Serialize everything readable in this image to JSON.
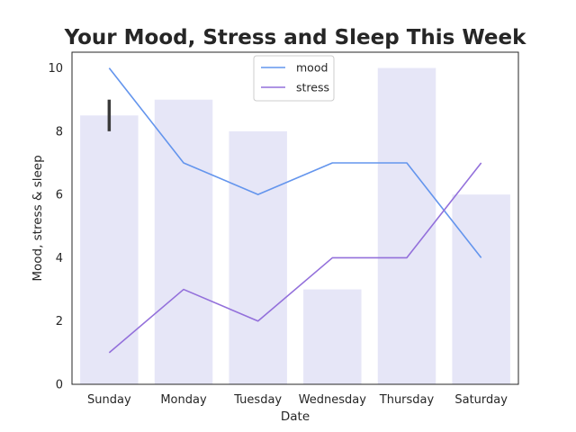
{
  "chart_data": {
    "type": "bar",
    "title": "Your Mood, Stress and Sleep This Week",
    "xlabel": "Date",
    "ylabel": "Mood, stress & sleep",
    "ylim": [
      0,
      10.5
    ],
    "yticks": [
      "0",
      "2",
      "4",
      "6",
      "8",
      "10"
    ],
    "categories": [
      "Sunday",
      "Monday",
      "Tuesday",
      "Wednesday",
      "Thursday",
      "Saturday"
    ],
    "bars": {
      "values": [
        8.5,
        9,
        8,
        3,
        10,
        6
      ],
      "color": "#e6e6f7",
      "error_bars": [
        {
          "category": "Sunday",
          "low": 8,
          "high": 9
        }
      ]
    },
    "series": [
      {
        "name": "mood",
        "color": "#6495ed",
        "values": [
          10,
          7,
          6,
          7,
          7,
          4
        ]
      },
      {
        "name": "stress",
        "color": "#9370db",
        "values": [
          1,
          3,
          2,
          4,
          4,
          7
        ]
      }
    ],
    "legend": "top-center",
    "grid": false
  }
}
